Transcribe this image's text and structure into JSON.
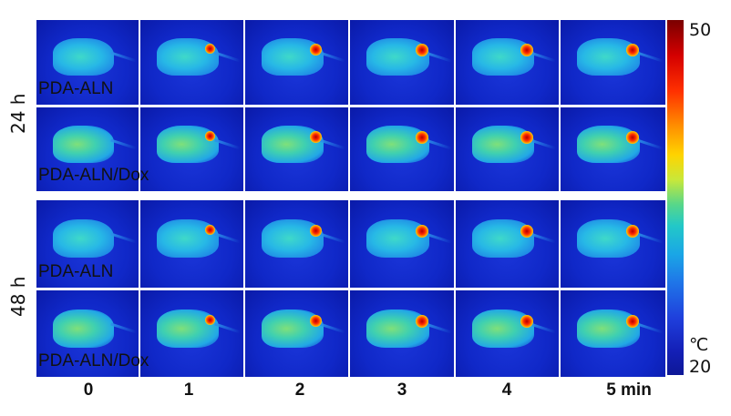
{
  "time_points": [
    "0",
    "1",
    "2",
    "3",
    "4",
    "5 min"
  ],
  "blocks": [
    {
      "time_label": "24 h",
      "rows": [
        {
          "label": "PDA-ALN",
          "variant": "aln"
        },
        {
          "label": "PDA-ALN/Dox",
          "variant": "dox"
        }
      ]
    },
    {
      "time_label": "48 h",
      "rows": [
        {
          "label": "PDA-ALN",
          "variant": "aln"
        },
        {
          "label": "PDA-ALN/Dox",
          "variant": "dox"
        }
      ]
    }
  ],
  "color_scale": {
    "max": "50",
    "min": "20",
    "unit": "℃",
    "colors": [
      "#7a0000",
      "#ff3000",
      "#ffd400",
      "#57d78a",
      "#1aa6e6",
      "#1420b8"
    ]
  }
}
